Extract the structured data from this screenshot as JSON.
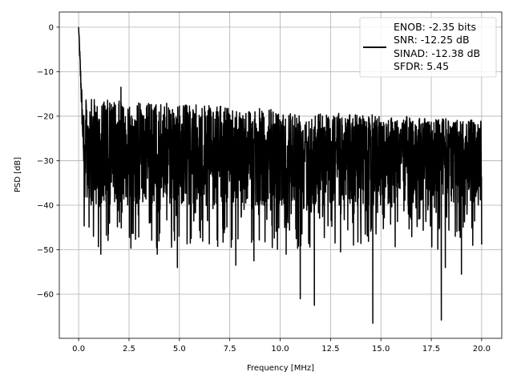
{
  "chart_data": {
    "type": "line",
    "xlabel": "Frequency [MHz]",
    "ylabel": "PSD [dB]",
    "xlim": [
      -0.96,
      21.0
    ],
    "ylim": [
      -69.9,
      3.4
    ],
    "xticks": [
      0.0,
      2.5,
      5.0,
      7.5,
      10.0,
      12.5,
      15.0,
      17.5,
      20.0
    ],
    "xtick_labels": [
      "0.0",
      "2.5",
      "5.0",
      "7.5",
      "10.0",
      "12.5",
      "15.0",
      "17.5",
      "20.0"
    ],
    "yticks": [
      0,
      -10,
      -20,
      -30,
      -40,
      -50,
      -60
    ],
    "ytick_labels": [
      "0",
      "−10",
      "−20",
      "−30",
      "−40",
      "−50",
      "−60"
    ],
    "grid": true,
    "legend_position": "top-right",
    "series": [
      {
        "name": "PSD",
        "color": "#000000",
        "x_range": [
          0,
          20
        ],
        "peak": {
          "x": 0.0,
          "y": 0.0
        },
        "noise_band": {
          "upper_start": -16,
          "upper_end": -21,
          "lower": -40,
          "median": -28
        },
        "notable_points": [
          {
            "x": 2.1,
            "y": -13.5
          },
          {
            "x": 1.1,
            "y": -51
          },
          {
            "x": 3.9,
            "y": -51
          },
          {
            "x": 4.9,
            "y": -54
          },
          {
            "x": 7.8,
            "y": -53.5
          },
          {
            "x": 8.7,
            "y": -52.5
          },
          {
            "x": 10.3,
            "y": -51
          },
          {
            "x": 11.0,
            "y": -61
          },
          {
            "x": 11.7,
            "y": -62.5
          },
          {
            "x": 13.0,
            "y": -50.5
          },
          {
            "x": 14.6,
            "y": -66.5
          },
          {
            "x": 18.0,
            "y": -65.8
          },
          {
            "x": 18.2,
            "y": -54
          },
          {
            "x": 19.0,
            "y": -55.5
          }
        ]
      }
    ],
    "legend": [
      "ENOB: -2.35 bits",
      "SNR: -12.25 dB",
      "SINAD: -12.38 dB",
      "SFDR: 5.45"
    ]
  }
}
